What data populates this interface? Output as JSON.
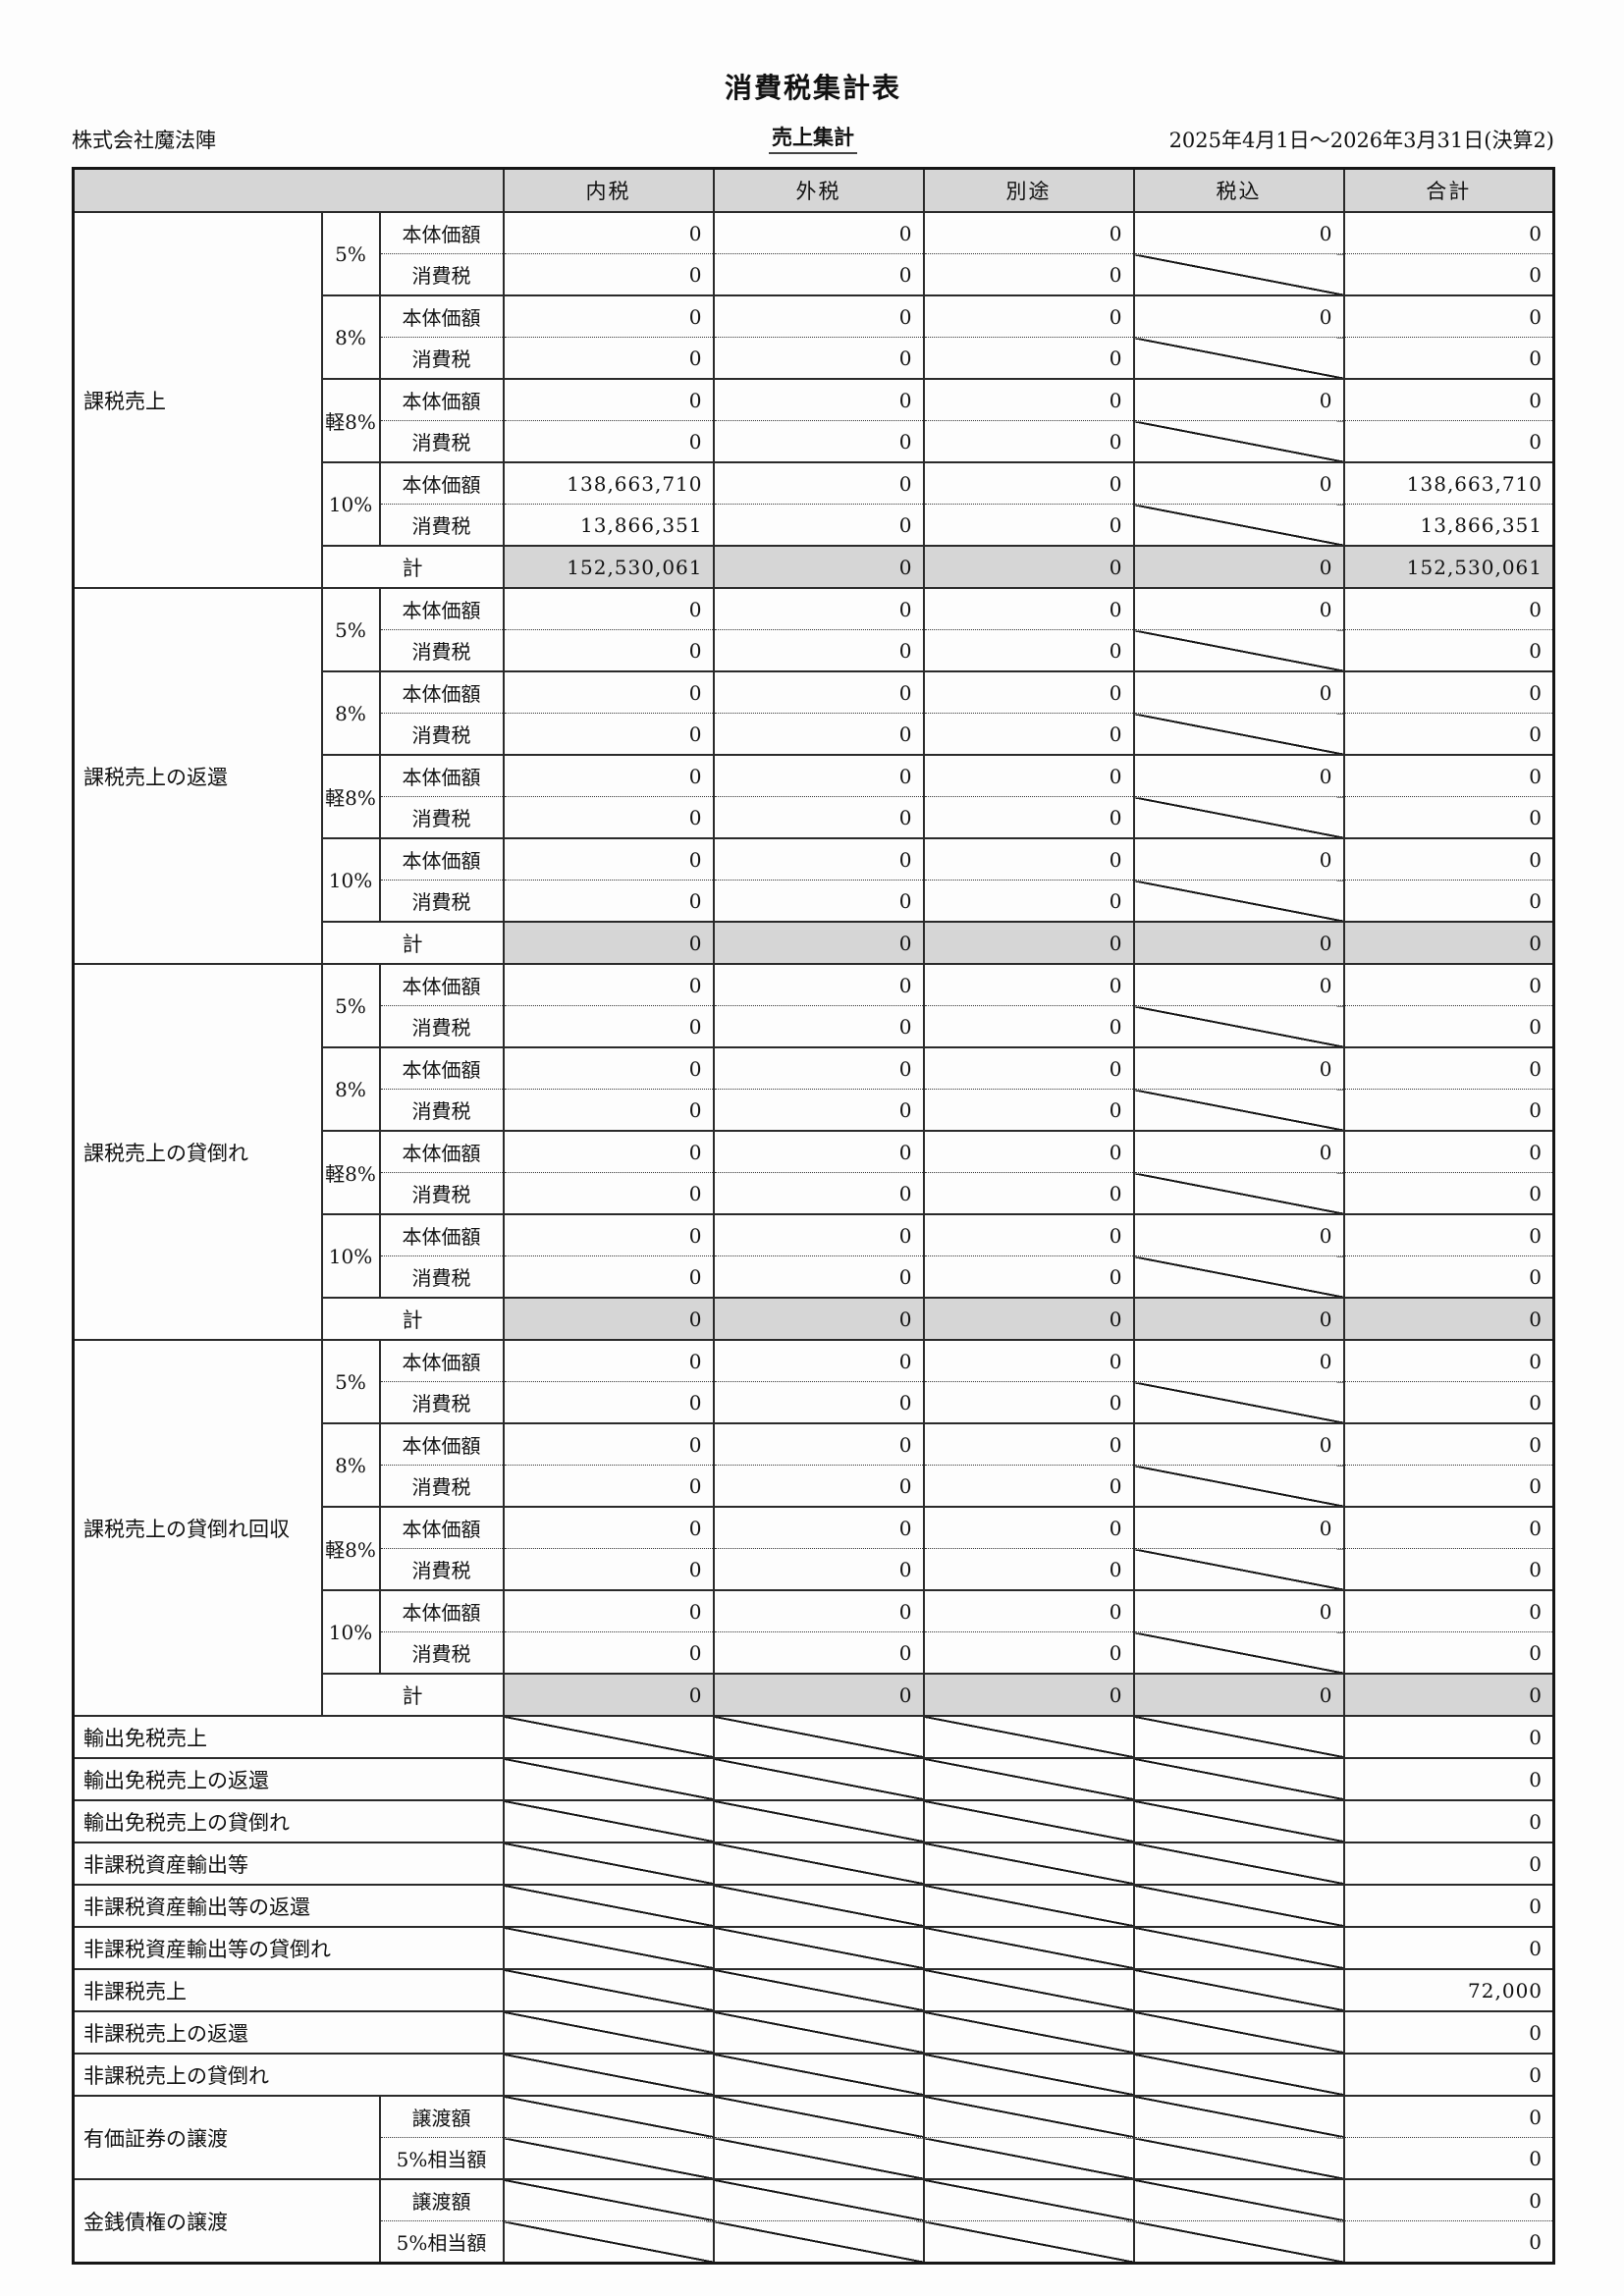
{
  "page": {
    "title": "消費税集計表",
    "company": "株式会社魔法陣",
    "report_type": "売上集計",
    "period": "2025年4月1日〜2026年3月31日(決算2)"
  },
  "colors": {
    "header_fill": "#d6d6d6"
  },
  "table": {
    "columns": [
      "内税",
      "外税",
      "別途",
      "税込",
      "合計"
    ],
    "row_labels": {
      "base": "本体価額",
      "tax": "消費税",
      "total": "計"
    },
    "groups": [
      {
        "name": "課税売上",
        "rates": [
          {
            "rate": "5%",
            "base": [
              "0",
              "0",
              "0",
              "0",
              "0"
            ],
            "tax": [
              "0",
              "0",
              "0",
              null,
              "0"
            ]
          },
          {
            "rate": "8%",
            "base": [
              "0",
              "0",
              "0",
              "0",
              "0"
            ],
            "tax": [
              "0",
              "0",
              "0",
              null,
              "0"
            ]
          },
          {
            "rate": "軽8%",
            "base": [
              "0",
              "0",
              "0",
              "0",
              "0"
            ],
            "tax": [
              "0",
              "0",
              "0",
              null,
              "0"
            ]
          },
          {
            "rate": "10%",
            "base": [
              "138,663,710",
              "0",
              "0",
              "0",
              "138,663,710"
            ],
            "tax": [
              "13,866,351",
              "0",
              "0",
              null,
              "13,866,351"
            ]
          }
        ],
        "total": [
          "152,530,061",
          "0",
          "0",
          "0",
          "152,530,061"
        ]
      },
      {
        "name": "課税売上の返還",
        "rates": [
          {
            "rate": "5%",
            "base": [
              "0",
              "0",
              "0",
              "0",
              "0"
            ],
            "tax": [
              "0",
              "0",
              "0",
              null,
              "0"
            ]
          },
          {
            "rate": "8%",
            "base": [
              "0",
              "0",
              "0",
              "0",
              "0"
            ],
            "tax": [
              "0",
              "0",
              "0",
              null,
              "0"
            ]
          },
          {
            "rate": "軽8%",
            "base": [
              "0",
              "0",
              "0",
              "0",
              "0"
            ],
            "tax": [
              "0",
              "0",
              "0",
              null,
              "0"
            ]
          },
          {
            "rate": "10%",
            "base": [
              "0",
              "0",
              "0",
              "0",
              "0"
            ],
            "tax": [
              "0",
              "0",
              "0",
              null,
              "0"
            ]
          }
        ],
        "total": [
          "0",
          "0",
          "0",
          "0",
          "0"
        ]
      },
      {
        "name": "課税売上の貸倒れ",
        "rates": [
          {
            "rate": "5%",
            "base": [
              "0",
              "0",
              "0",
              "0",
              "0"
            ],
            "tax": [
              "0",
              "0",
              "0",
              null,
              "0"
            ]
          },
          {
            "rate": "8%",
            "base": [
              "0",
              "0",
              "0",
              "0",
              "0"
            ],
            "tax": [
              "0",
              "0",
              "0",
              null,
              "0"
            ]
          },
          {
            "rate": "軽8%",
            "base": [
              "0",
              "0",
              "0",
              "0",
              "0"
            ],
            "tax": [
              "0",
              "0",
              "0",
              null,
              "0"
            ]
          },
          {
            "rate": "10%",
            "base": [
              "0",
              "0",
              "0",
              "0",
              "0"
            ],
            "tax": [
              "0",
              "0",
              "0",
              null,
              "0"
            ]
          }
        ],
        "total": [
          "0",
          "0",
          "0",
          "0",
          "0"
        ]
      },
      {
        "name": "課税売上の貸倒れ回収",
        "rates": [
          {
            "rate": "5%",
            "base": [
              "0",
              "0",
              "0",
              "0",
              "0"
            ],
            "tax": [
              "0",
              "0",
              "0",
              null,
              "0"
            ]
          },
          {
            "rate": "8%",
            "base": [
              "0",
              "0",
              "0",
              "0",
              "0"
            ],
            "tax": [
              "0",
              "0",
              "0",
              null,
              "0"
            ]
          },
          {
            "rate": "軽8%",
            "base": [
              "0",
              "0",
              "0",
              "0",
              "0"
            ],
            "tax": [
              "0",
              "0",
              "0",
              null,
              "0"
            ]
          },
          {
            "rate": "10%",
            "base": [
              "0",
              "0",
              "0",
              "0",
              "0"
            ],
            "tax": [
              "0",
              "0",
              "0",
              null,
              "0"
            ]
          }
        ],
        "total": [
          "0",
          "0",
          "0",
          "0",
          "0"
        ]
      }
    ],
    "single_rows": [
      {
        "label": "輸出免税売上",
        "values": [
          null,
          null,
          null,
          null,
          "0"
        ]
      },
      {
        "label": "輸出免税売上の返還",
        "values": [
          null,
          null,
          null,
          null,
          "0"
        ]
      },
      {
        "label": "輸出免税売上の貸倒れ",
        "values": [
          null,
          null,
          null,
          null,
          "0"
        ]
      },
      {
        "label": "非課税資産輸出等",
        "values": [
          null,
          null,
          null,
          null,
          "0"
        ]
      },
      {
        "label": "非課税資産輸出等の返還",
        "values": [
          null,
          null,
          null,
          null,
          "0"
        ]
      },
      {
        "label": "非課税資産輸出等の貸倒れ",
        "values": [
          null,
          null,
          null,
          null,
          "0"
        ]
      },
      {
        "label": "非課税売上",
        "values": [
          null,
          null,
          null,
          null,
          "72,000"
        ]
      },
      {
        "label": "非課税売上の返還",
        "values": [
          null,
          null,
          null,
          null,
          "0"
        ]
      },
      {
        "label": "非課税売上の貸倒れ",
        "values": [
          null,
          null,
          null,
          null,
          "0"
        ]
      }
    ],
    "pair_groups": [
      {
        "name": "有価証券の譲渡",
        "rows": [
          {
            "label": "譲渡額",
            "values": [
              null,
              null,
              null,
              null,
              "0"
            ]
          },
          {
            "label": "5%相当額",
            "values": [
              null,
              null,
              null,
              null,
              "0"
            ]
          }
        ]
      },
      {
        "name": "金銭債権の譲渡",
        "rows": [
          {
            "label": "譲渡額",
            "values": [
              null,
              null,
              null,
              null,
              "0"
            ]
          },
          {
            "label": "5%相当額",
            "values": [
              null,
              null,
              null,
              null,
              "0"
            ]
          }
        ]
      }
    ]
  }
}
